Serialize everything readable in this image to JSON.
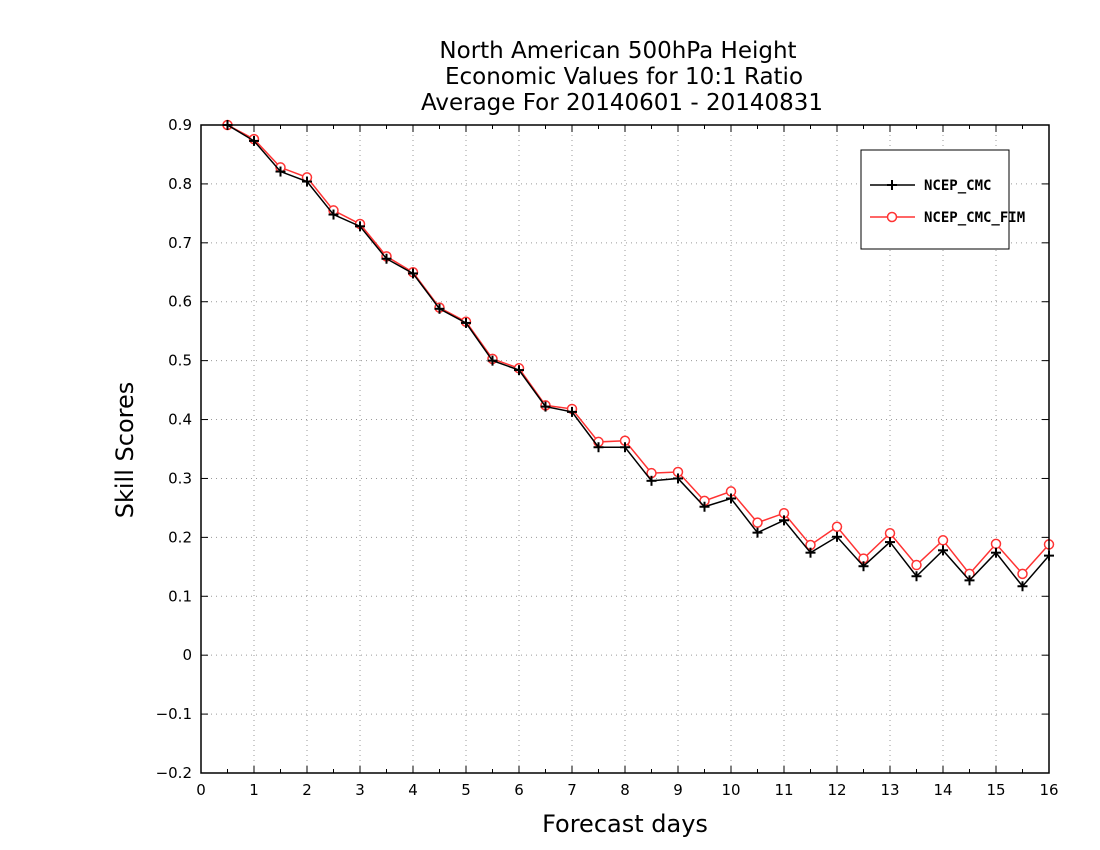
{
  "chart_data": {
    "type": "line",
    "title": [
      "North American 500hPa Height",
      "Economic Values for 10:1 Ratio",
      "Average For 20140601 - 20140831"
    ],
    "xlabel": "Forecast days",
    "ylabel": "Skill Scores",
    "xlim": [
      0,
      16
    ],
    "ylim": [
      -0.2,
      0.9
    ],
    "x_ticks": [
      0,
      1,
      2,
      3,
      4,
      5,
      6,
      7,
      8,
      9,
      10,
      11,
      12,
      13,
      14,
      15,
      16
    ],
    "y_ticks": [
      -0.2,
      -0.1,
      0,
      0.1,
      0.2,
      0.3,
      0.4,
      0.5,
      0.6,
      0.7,
      0.8,
      0.9
    ],
    "grid": true,
    "legend_position": "top-right",
    "x": [
      0.5,
      1,
      1.5,
      2,
      2.5,
      3,
      3.5,
      4,
      4.5,
      5,
      5.5,
      6,
      6.5,
      7,
      7.5,
      8,
      8.5,
      9,
      9.5,
      10,
      10.5,
      11,
      11.5,
      12,
      12.5,
      13,
      13.5,
      14,
      14.5,
      15,
      15.5,
      16
    ],
    "series": [
      {
        "name": "NCEP_CMC",
        "color": "#000000",
        "marker": "plus",
        "values": [
          0.9,
          0.873,
          0.821,
          0.804,
          0.748,
          0.728,
          0.673,
          0.648,
          0.588,
          0.564,
          0.5,
          0.484,
          0.422,
          0.413,
          0.353,
          0.353,
          0.296,
          0.3,
          0.252,
          0.266,
          0.208,
          0.229,
          0.174,
          0.201,
          0.151,
          0.192,
          0.134,
          0.178,
          0.127,
          0.174,
          0.117,
          0.169
        ]
      },
      {
        "name": "NCEP_CMC_FIM",
        "color": "#ff3333",
        "marker": "circle",
        "values": [
          0.9,
          0.876,
          0.828,
          0.811,
          0.755,
          0.732,
          0.677,
          0.65,
          0.59,
          0.566,
          0.503,
          0.487,
          0.424,
          0.418,
          0.362,
          0.364,
          0.309,
          0.311,
          0.262,
          0.278,
          0.225,
          0.241,
          0.187,
          0.218,
          0.164,
          0.207,
          0.153,
          0.195,
          0.138,
          0.189,
          0.138,
          0.188
        ]
      }
    ]
  }
}
